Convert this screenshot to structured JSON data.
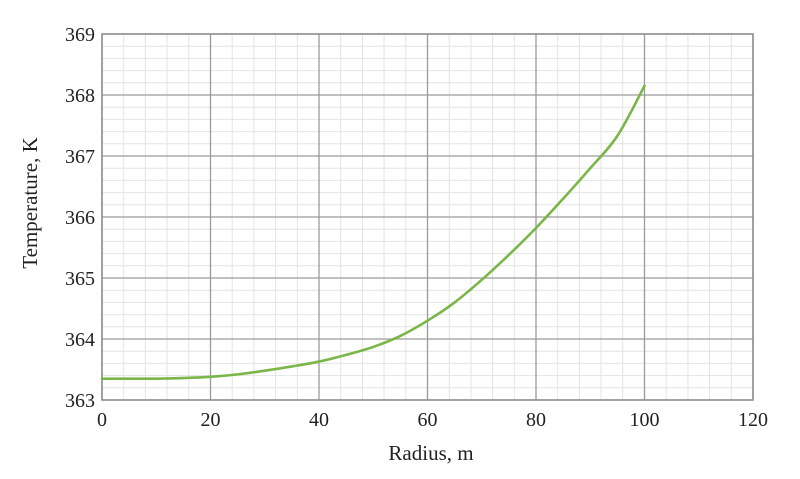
{
  "chart_data": {
    "type": "line",
    "title": "",
    "xlabel": "Radius, m",
    "ylabel": "Temperature, K",
    "xlim": [
      0,
      120
    ],
    "ylim": [
      363,
      369
    ],
    "xticks": [
      "0",
      "20",
      "40",
      "60",
      "80",
      "100",
      "120"
    ],
    "yticks": [
      "363",
      "364",
      "365",
      "366",
      "367",
      "368",
      "369"
    ],
    "grid": true,
    "legend": "none",
    "series": [
      {
        "color": "#7ab648",
        "x": [
          0,
          5,
          10,
          15,
          20,
          25,
          30,
          35,
          40,
          45,
          50,
          55,
          60,
          65,
          70,
          75,
          80,
          85,
          90,
          95,
          100
        ],
        "y": [
          363.35,
          363.35,
          363.35,
          363.36,
          363.38,
          363.42,
          363.48,
          363.55,
          363.63,
          363.74,
          363.87,
          364.05,
          364.3,
          364.6,
          364.97,
          365.38,
          365.82,
          366.3,
          366.8,
          367.33,
          368.15
        ]
      }
    ]
  }
}
